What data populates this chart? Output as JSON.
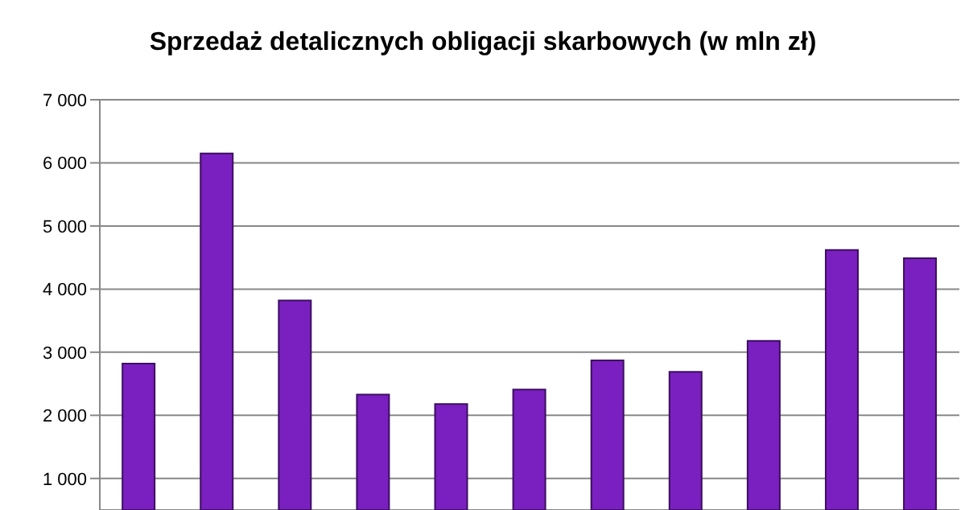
{
  "chart_data": {
    "type": "bar",
    "title": "Sprzedaż detalicznych obligacji skarbowych (w mln zł)",
    "categories": [
      null,
      null,
      null,
      null,
      null,
      null,
      null,
      null,
      null,
      null,
      null
    ],
    "values": [
      2820,
      6150,
      3820,
      2330,
      2180,
      2410,
      2870,
      2690,
      3180,
      4620,
      4490
    ],
    "color": "#7a1fc0",
    "ylim": [
      500,
      7000
    ],
    "yticks": [
      {
        "value": 1000,
        "label": "1 000"
      },
      {
        "value": 2000,
        "label": "2 000"
      },
      {
        "value": 3000,
        "label": "3 000"
      },
      {
        "value": 4000,
        "label": "4 000"
      },
      {
        "value": 5000,
        "label": "5 000"
      },
      {
        "value": 6000,
        "label": "6 000"
      },
      {
        "value": 7000,
        "label": "7 000"
      }
    ],
    "grid": "y"
  }
}
